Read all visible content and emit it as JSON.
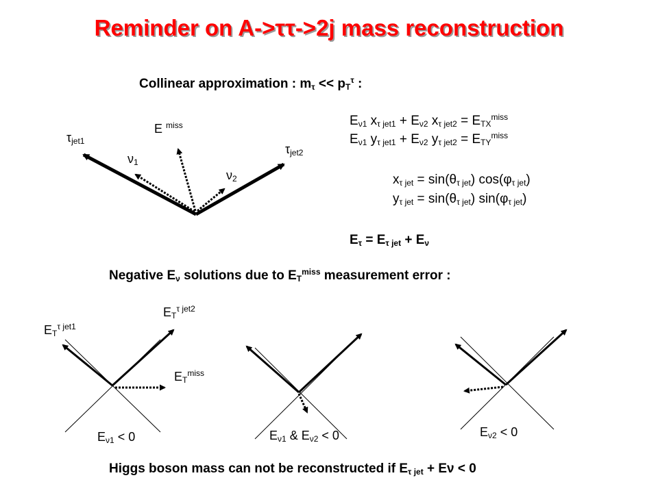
{
  "title": {
    "pre": "Reminder on A->",
    "tt": "ττ",
    "post": "->2j mass reconstruction"
  },
  "collinear": {
    "text": "Collinear approximation : m",
    "tau": "τ",
    "mid": " << p",
    "T": "T",
    "tau_sup": "τ",
    "colon": " :"
  },
  "diagram1": {
    "tau_jet1": {
      "sym": "τ",
      "sub": "jet1"
    },
    "tau_jet2": {
      "sym": "τ",
      "sub": "jet2"
    },
    "emiss": {
      "E": "E",
      "sup": "miss"
    },
    "nu1": {
      "sym": "ν",
      "sub": "1"
    },
    "nu2": {
      "sym": "ν",
      "sub": "2"
    }
  },
  "equations": {
    "eq1": {
      "a": "E",
      "b": "ν1",
      "c": " x",
      "d": "τ jet1",
      "e": " + E",
      "f": "ν2",
      "g": " x",
      "h": "τ jet2",
      "i": " = E",
      "j": "TX",
      "k": "miss"
    },
    "eq2": {
      "a": "E",
      "b": "ν1",
      "c": " y",
      "d": "τ jet1",
      "e": " + E",
      "f": "ν2",
      "g": " y",
      "h": "τ jet2",
      "i": " = E",
      "j": "TY",
      "k": "miss"
    },
    "eq3": {
      "a": "x",
      "b": "τ jet",
      "c": " = sin(θ",
      "d": "τ jet",
      "e": ") cos(φ",
      "f": "τ jet",
      "g": ")"
    },
    "eq4": {
      "a": "y",
      "b": "τ jet",
      "c": " = sin(θ",
      "d": "τ jet",
      "e": ") sin(φ",
      "f": "τ jet",
      "g": ")"
    },
    "eq5": {
      "a": "E",
      "b": "τ",
      "c": " = E",
      "d": "τ jet",
      "e": " + E",
      "f": "ν"
    }
  },
  "negative": {
    "pre": "Negative E",
    "nu": "ν",
    "mid": " solutions due to E",
    "T": "T",
    "sup": "miss",
    "post": " measurement error :"
  },
  "case1": {
    "et_jet1": {
      "E": "E",
      "T": "T",
      "sup": "τ jet1"
    },
    "et_jet2": {
      "E": "E",
      "T": "T",
      "sup": "τ jet2"
    },
    "et_miss": {
      "E": "E",
      "T": "T",
      "sup": "miss"
    },
    "label": {
      "E": "E",
      "sub": "ν1",
      "rest": " < 0"
    }
  },
  "case2": {
    "label": {
      "E1": "E",
      "sub1": "ν1",
      "amp": " & E",
      "sub2": "ν2",
      "rest": " < 0"
    }
  },
  "case3": {
    "label": {
      "E": "E",
      "sub": "ν2",
      "rest": " < 0"
    }
  },
  "higgs": {
    "pre": "Higgs boson mass can not be reconstructed if  E",
    "sub": "τ jet",
    "post": " + Eν < 0"
  },
  "colors": {
    "title": "#ff0000",
    "title_shadow": "#9a9a9a",
    "ink": "#000000"
  }
}
